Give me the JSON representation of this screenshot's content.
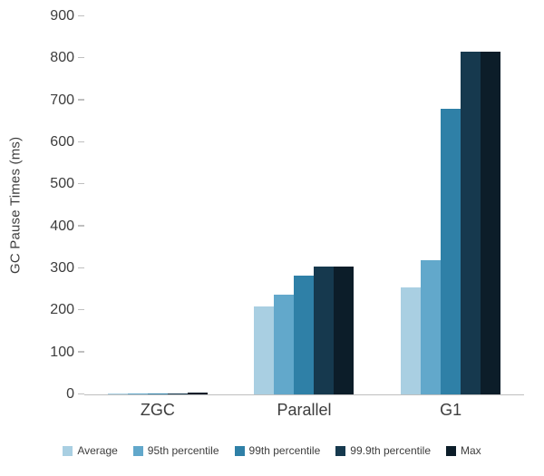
{
  "chart_data": {
    "type": "bar",
    "title": "",
    "xlabel": "",
    "ylabel": "GC Pause Times (ms)",
    "ylim": [
      0,
      900
    ],
    "ytick_step": 100,
    "grid": false,
    "legend_position": "bottom",
    "categories": [
      "ZGC",
      "Parallel",
      "G1"
    ],
    "series": [
      {
        "name": "Average",
        "color": "#a9cfe2",
        "values": [
          1,
          210,
          255
        ]
      },
      {
        "name": "95th percentile",
        "color": "#62a8cb",
        "values": [
          1,
          238,
          320
        ]
      },
      {
        "name": "99th percentile",
        "color": "#2f80a7",
        "values": [
          2,
          283,
          680
        ]
      },
      {
        "name": "99.9th percentile",
        "color": "#16394e",
        "values": [
          3,
          305,
          815
        ]
      },
      {
        "name": "Max",
        "color": "#0c1d29",
        "values": [
          5,
          305,
          815
        ]
      }
    ]
  }
}
